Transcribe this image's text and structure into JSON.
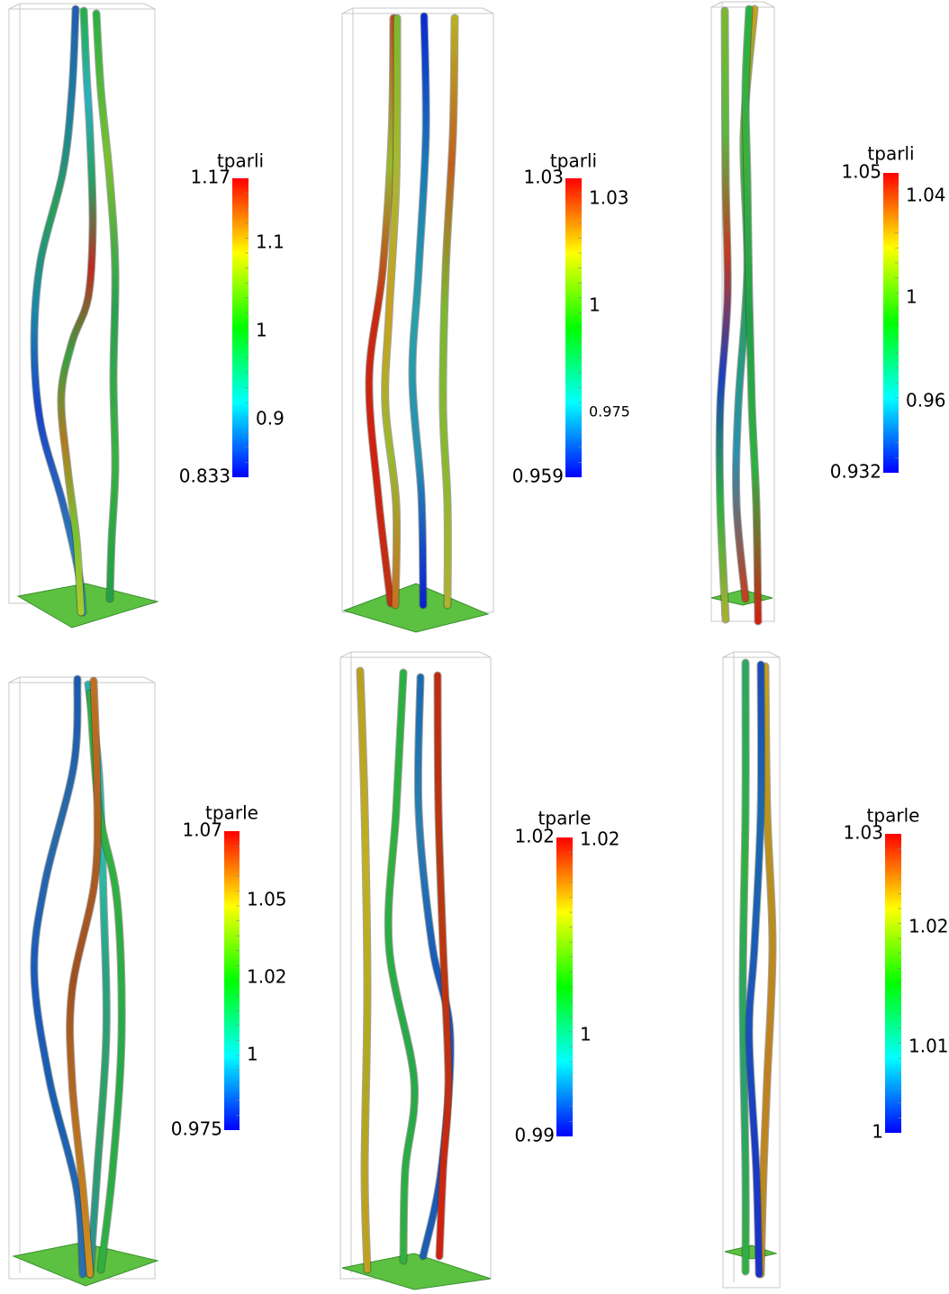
{
  "panels": [
    {
      "title": "tparli",
      "max_label": "1.17",
      "min_label": "0.833",
      "ticks": [
        "1.1",
        "1",
        "0.9"
      ]
    },
    {
      "title": "tparli",
      "max_label": "1.03",
      "min_label": "0.959",
      "ticks": [
        "1.03",
        "1",
        "0.975"
      ]
    },
    {
      "title": "tparli",
      "max_label": "1.05",
      "min_label": "0.932",
      "ticks": [
        "1.04",
        "1",
        "0.96"
      ]
    },
    {
      "title": "tparle",
      "max_label": "1.07",
      "min_label": "0.975",
      "ticks": [
        "1.05",
        "1.02",
        "1"
      ]
    },
    {
      "title": "tparle",
      "max_label": "1.02",
      "min_label": "0.99",
      "ticks": [
        "1.02",
        "1"
      ]
    },
    {
      "title": "tparle",
      "max_label": "1.03",
      "min_label": "1",
      "ticks": [
        "1.02",
        "1.01"
      ]
    }
  ]
}
